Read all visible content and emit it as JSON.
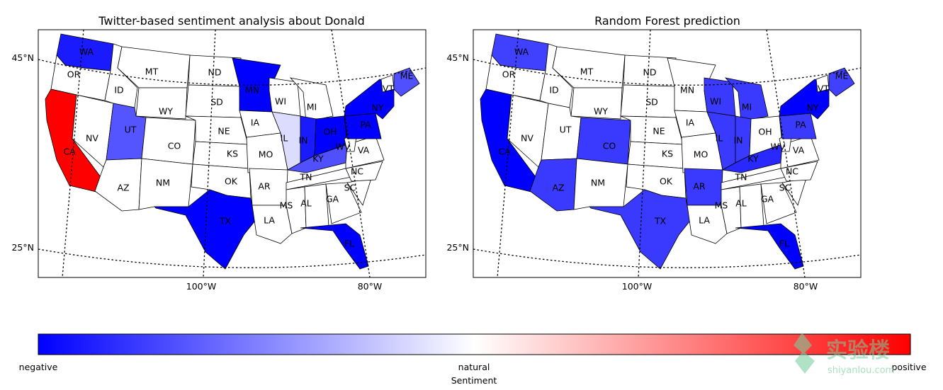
{
  "map1": {
    "title": "Twitter-based sentiment analysis about Donald"
  },
  "map2": {
    "title": "Random Forest prediction"
  },
  "lat_labels": [
    "45°N",
    "25°N"
  ],
  "lon_labels": [
    "100°W",
    "80°W"
  ],
  "state_labels": [
    "WA",
    "OR",
    "CA",
    "NV",
    "ID",
    "MT",
    "WY",
    "UT",
    "AZ",
    "CO",
    "NM",
    "ND",
    "SD",
    "NE",
    "KS",
    "OK",
    "TX",
    "MN",
    "IA",
    "MO",
    "AR",
    "LA",
    "WI",
    "IL",
    "MI",
    "IN",
    "OH",
    "KY",
    "TN",
    "MS",
    "AL",
    "GA",
    "FL",
    "SC",
    "NC",
    "VA",
    "WV",
    "PA",
    "NY",
    "VT",
    "ME"
  ],
  "colorbar": {
    "label_negative": "negative",
    "label_natural": "natural",
    "label_positive": "positive",
    "title": "Sentiment",
    "color_negative": "#0000ff",
    "color_natural": "#ffffff",
    "color_positive": "#ff0000"
  },
  "sentiment_map1": {
    "WA": "#1a1aff",
    "CA": "#ff0000",
    "UT": "#5555ff",
    "TX": "#0000ff",
    "MN": "#0000ff",
    "IL": "#dcdcff",
    "IN": "#1a1aff",
    "OH": "#0000ff",
    "KY": "#5050ff",
    "FL": "#0000ff",
    "NY": "#0000ff",
    "PA": "#0000ff",
    "ME": "#5050ff"
  },
  "sentiment_map2": {
    "WA": "#4040ff",
    "CA": "#0000ff",
    "AZ": "#3a3aff",
    "CO": "#3a3aff",
    "TX": "#3a3aff",
    "AR": "#3a3aff",
    "IL": "#3a3aff",
    "IN": "#3a3aff",
    "KY": "#2828ff",
    "MI": "#3a3aff",
    "WI": "#3a3aff",
    "FL": "#0000ff",
    "NY": "#0000ff",
    "PA": "#3a3aff",
    "ME": "#4040ff"
  },
  "watermark": {
    "main": "实验楼",
    "sub": "shiyanlou.com"
  }
}
